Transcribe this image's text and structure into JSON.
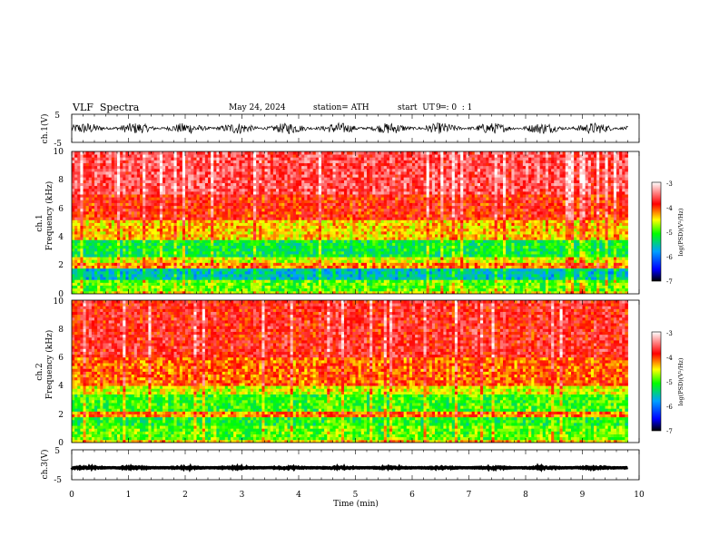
{
  "header": {
    "title": "VLF  Spectra",
    "date": "May 24, 2024",
    "station": "station= ATH",
    "start_label": "start  UT  =",
    "start_time": "9  : 0  : 1"
  },
  "colors": {
    "spectrogram_scale": [
      "#000000",
      "#0000ff",
      "#00a0ff",
      "#00ff00",
      "#ffff00",
      "#ff0000",
      "#ffffff"
    ]
  },
  "chart_data": [
    {
      "type": "line",
      "name": "ch1-waveform",
      "ylabel": "ch.1(V)",
      "ylim": [
        -5,
        5
      ],
      "yticks": [
        "5",
        "-5"
      ],
      "xlim": [
        0,
        10
      ],
      "x_end": 9.8,
      "level": 0,
      "amplitude": 2.0
    },
    {
      "type": "heatmap",
      "name": "ch1-spectrogram",
      "ylabel_channel": "ch.1",
      "ylabel": "Frequency  (kHz)",
      "ylim": [
        0,
        10
      ],
      "yticks": [
        "0",
        "2",
        "4",
        "6",
        "8",
        "10"
      ],
      "xlim": [
        0,
        10
      ],
      "x_end": 9.8,
      "colorbar": {
        "label": "log(PSD)(V²/Hz)",
        "ticks": [
          "-3",
          "-4",
          "-5",
          "-6",
          "-7"
        ],
        "range": [
          -7,
          -3
        ]
      },
      "profile": [
        {
          "f0": 0.0,
          "f1": 0.3,
          "psd": -4.6
        },
        {
          "f0": 0.3,
          "f1": 1.0,
          "psd": -4.9
        },
        {
          "f0": 1.0,
          "f1": 1.8,
          "psd": -5.6
        },
        {
          "f0": 1.8,
          "f1": 2.2,
          "psd": -4.2
        },
        {
          "f0": 2.2,
          "f1": 2.6,
          "psd": -4.6
        },
        {
          "f0": 2.6,
          "f1": 3.9,
          "psd": -5.2
        },
        {
          "f0": 3.9,
          "f1": 5.2,
          "psd": -4.4
        },
        {
          "f0": 5.2,
          "f1": 7.0,
          "psd": -3.9
        },
        {
          "f0": 7.0,
          "f1": 10.0,
          "psd": -3.6
        }
      ]
    },
    {
      "type": "heatmap",
      "name": "ch2-spectrogram",
      "ylabel_channel": "ch.2",
      "ylabel": "Frequency  (kHz)",
      "ylim": [
        0,
        10
      ],
      "yticks": [
        "0",
        "2",
        "4",
        "6",
        "8",
        "10"
      ],
      "xlim": [
        0,
        10
      ],
      "x_end": 9.8,
      "colorbar": {
        "label": "log(PSD)(V²/Hz)",
        "ticks": [
          "-3",
          "-4",
          "-5",
          "-6",
          "-7"
        ],
        "range": [
          -7,
          -3
        ]
      },
      "profile": [
        {
          "f0": 0.0,
          "f1": 0.3,
          "psd": -4.4
        },
        {
          "f0": 0.3,
          "f1": 1.2,
          "psd": -4.9
        },
        {
          "f0": 1.2,
          "f1": 1.8,
          "psd": -5.1
        },
        {
          "f0": 1.8,
          "f1": 2.3,
          "psd": -4.2
        },
        {
          "f0": 2.3,
          "f1": 3.4,
          "psd": -5.0
        },
        {
          "f0": 3.4,
          "f1": 4.0,
          "psd": -4.6
        },
        {
          "f0": 4.0,
          "f1": 6.0,
          "psd": -4.1
        },
        {
          "f0": 6.0,
          "f1": 10.0,
          "psd": -3.8
        }
      ]
    },
    {
      "type": "line",
      "name": "ch3-waveform",
      "ylabel": "ch.3(V)",
      "ylim": [
        -5,
        5
      ],
      "yticks": [
        "5",
        "-5"
      ],
      "xlim": [
        0,
        10
      ],
      "x_end": 9.8,
      "level": -1.0,
      "amplitude": 0.3,
      "xlabel": "Time  (min)",
      "xticks": [
        "0",
        "1",
        "2",
        "3",
        "4",
        "5",
        "6",
        "7",
        "8",
        "9",
        "10"
      ]
    }
  ]
}
